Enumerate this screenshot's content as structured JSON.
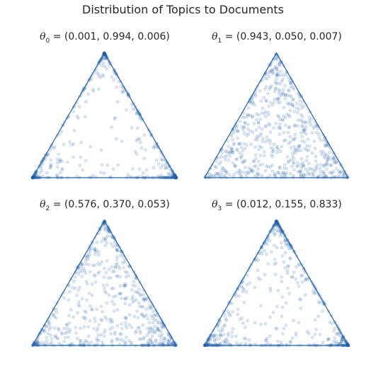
{
  "chart_data": {
    "type": "scatter",
    "title": "Distribution of Topics to Documents",
    "panels": [
      {
        "theta_label": "θ",
        "subscript": "0",
        "values_text": " = (0.001, 0.994, 0.006)",
        "theta": [
          0.001,
          0.994,
          0.006
        ],
        "concentration": "corners-left-right-top"
      },
      {
        "theta_label": "θ",
        "subscript": "1",
        "values_text": " = (0.943, 0.050, 0.007)",
        "theta": [
          0.943,
          0.05,
          0.007
        ],
        "concentration": "diffuse"
      },
      {
        "theta_label": "θ",
        "subscript": "2",
        "values_text": " = (0.576, 0.370, 0.053)",
        "theta": [
          0.576,
          0.37,
          0.053
        ],
        "concentration": "edges"
      },
      {
        "theta_label": "θ",
        "subscript": "3",
        "values_text": " = (0.012, 0.155, 0.833)",
        "theta": [
          0.012,
          0.155,
          0.833
        ],
        "concentration": "corners-left-top"
      }
    ],
    "marker_color": "#1f5fa8",
    "edge_color": "#1f5fa8",
    "grid": false
  }
}
